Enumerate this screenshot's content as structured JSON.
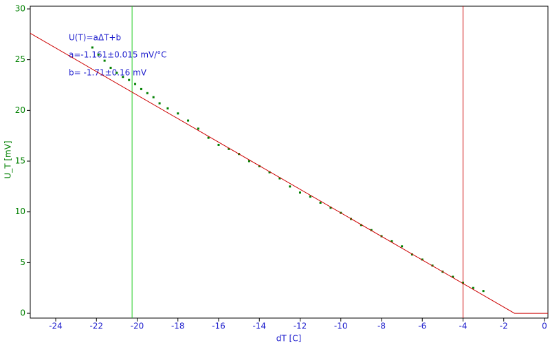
{
  "chart_data": {
    "type": "scatter",
    "xlabel": "dT [C]",
    "ylabel": "U_T [mV]",
    "annotations": [
      "U(T)=aΔT+b",
      "a=-1.161±0.015 mV/°C",
      "b= -1.71±0.16 mV"
    ],
    "xlim": [
      -25.25,
      0.17
    ],
    "ylim": [
      -0.47,
      30.27
    ],
    "xticks": [
      -24,
      -22,
      -20,
      -18,
      -16,
      -14,
      -12,
      -10,
      -8,
      -6,
      -4,
      -2,
      0
    ],
    "yticks": [
      0,
      5,
      10,
      15,
      20,
      25,
      30
    ],
    "series": [
      {
        "type": "scatter",
        "color": "#008000",
        "x": [
          -22.2,
          -21.9,
          -21.6,
          -21.3,
          -21,
          -20.7,
          -20.4,
          -20.1,
          -19.8,
          -19.5,
          -19.2,
          -18.9,
          -18.5,
          -18,
          -17.5,
          -17,
          -16.5,
          -16,
          -15.5,
          -15,
          -14.5,
          -14,
          -13.5,
          -13,
          -12.5,
          -12,
          -11.5,
          -11,
          -10.5,
          -10,
          -9.5,
          -9,
          -8.5,
          -8,
          -7.5,
          -7,
          -6.5,
          -6,
          -5.5,
          -5,
          -4.5,
          -4,
          -3.5,
          -3
        ],
        "values": [
          26.2,
          25.5,
          24.9,
          24.2,
          23.7,
          23.3,
          23,
          22.6,
          22.1,
          21.7,
          21.3,
          20.7,
          20.2,
          19.7,
          19,
          18.2,
          17.3,
          16.6,
          16.2,
          15.7,
          15,
          14.5,
          13.9,
          13.3,
          12.5,
          11.9,
          11.5,
          10.9,
          10.4,
          9.9,
          9.3,
          8.7,
          8.2,
          7.6,
          7.1,
          6.6,
          5.8,
          5.3,
          4.7,
          4.1,
          3.6,
          3,
          2.5,
          2.2
        ]
      },
      {
        "type": "line",
        "color": "#cc0000",
        "x": [
          -25.25,
          -1.47,
          0.17
        ],
        "values": [
          27.6,
          0,
          0
        ]
      }
    ],
    "vlines": [
      {
        "x": -20.25,
        "color": "#22cc22"
      },
      {
        "x": -4.0,
        "color": "#cc0000"
      }
    ]
  }
}
